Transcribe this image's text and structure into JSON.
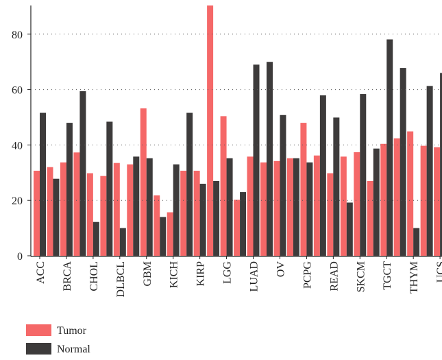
{
  "chart_data": {
    "type": "bar",
    "categories": [
      "ACC",
      null,
      "BRCA",
      null,
      "CHOL",
      null,
      "DLBCL",
      null,
      "GBM",
      null,
      "KICH",
      null,
      "KIRP",
      null,
      "LGG",
      null,
      "LUAD",
      null,
      "OV",
      null,
      "PCPG",
      null,
      "READ",
      null,
      "SKCM",
      null,
      "TGCT",
      null,
      "THYM",
      null,
      "UCS"
    ],
    "series": [
      {
        "name": "Tumor",
        "color": "#f56868",
        "values": [
          30.7,
          32,
          33.7,
          37.3,
          29.8,
          28.8,
          33.5,
          33,
          53.2,
          21.8,
          15.7,
          30.7,
          30.7,
          91,
          50.4,
          20.2,
          35.8,
          33.7,
          34.2,
          35.2,
          48,
          36.2,
          29.8,
          35.8,
          37.4,
          27,
          40.4,
          42.4,
          44.9,
          39.7,
          39.2
        ]
      },
      {
        "name": "Normal",
        "color": "#3d3b3b",
        "values": [
          51.6,
          27.8,
          48,
          59.4,
          12.2,
          48.4,
          10,
          35.8,
          35.2,
          14,
          33,
          51.6,
          26,
          27,
          35.2,
          23,
          69,
          70,
          50.8,
          35.2,
          33.7,
          57.9,
          49.9,
          19.2,
          58.4,
          38.7,
          78.1,
          67.8,
          10,
          61.3,
          66
        ]
      }
    ],
    "ylim": [
      0,
      90
    ],
    "yticks": [
      0,
      20,
      40,
      60,
      80
    ],
    "grid": true
  }
}
